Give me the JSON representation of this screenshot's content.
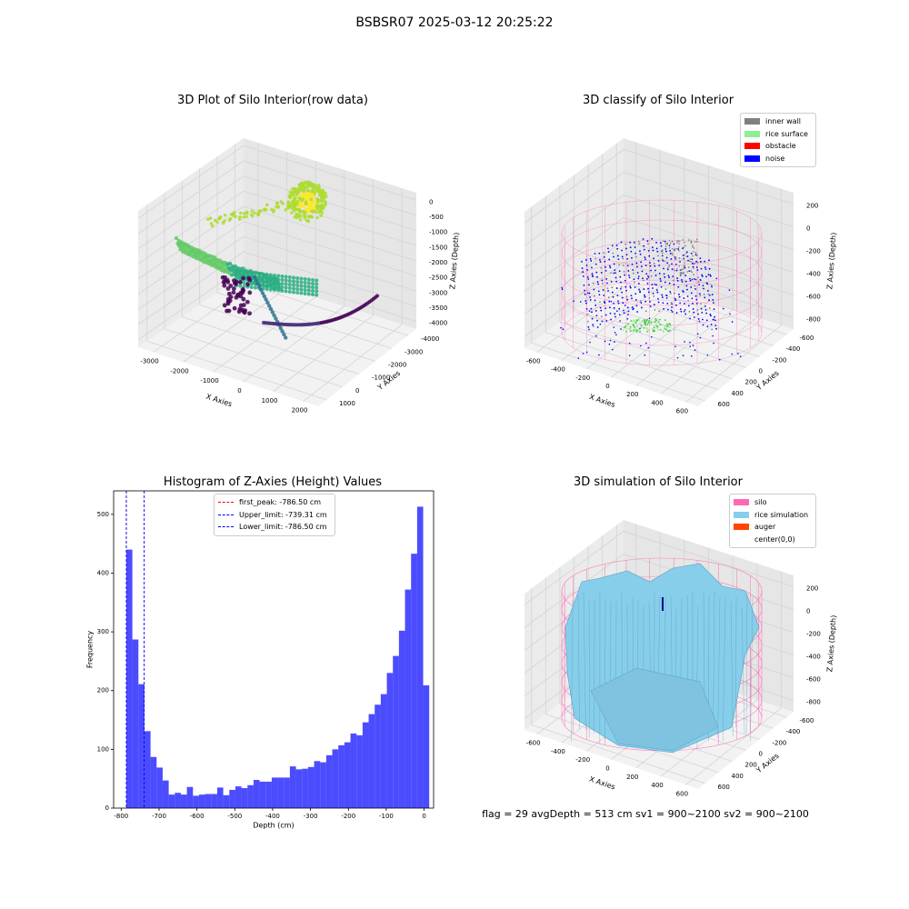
{
  "figure": {
    "title": "BSBSR07 2025-03-12 20:25:22",
    "stats": "flag = 29  avgDepth = 513 cm  sv1 = 900~2100  sv2 = 900~2100"
  },
  "chart_data": [
    {
      "type": "scatter",
      "subtype": "3d",
      "title": "3D Plot of Silo Interior(row data)",
      "xlabel": "X Axies",
      "ylabel": "Y Axies",
      "zlabel": "Z Axies (Depth)",
      "x_ticks": [
        "-3000",
        "-2000",
        "-1000",
        "0",
        "1000",
        "2000"
      ],
      "y_ticks": [
        "1000",
        "0",
        "-1000",
        "-2000",
        "-3000",
        "-4000"
      ],
      "z_ticks": [
        "0",
        "-500",
        "-1000",
        "-1500",
        "-2000",
        "-2500",
        "-3000",
        "-3500",
        "-4000"
      ],
      "colormap": "viridis",
      "grid": true
    },
    {
      "type": "scatter",
      "subtype": "3d",
      "title": "3D classify of Silo Interior",
      "xlabel": "X Axies",
      "ylabel": "Y Axies",
      "zlabel": "Z Axies (Depth)",
      "x_ticks": [
        "-600",
        "-400",
        "-200",
        "0",
        "200",
        "400",
        "600"
      ],
      "y_ticks": [
        "600",
        "400",
        "200",
        "0",
        "-200",
        "-400",
        "-600"
      ],
      "z_ticks": [
        "200",
        "0",
        "-200",
        "-400",
        "-600",
        "-800"
      ],
      "legend": {
        "position": "top-right",
        "entries": [
          {
            "label": "inner wall",
            "color": "#808080"
          },
          {
            "label": "rice surface",
            "color": "#90ee90"
          },
          {
            "label": "obstacle",
            "color": "#ff0000"
          },
          {
            "label": "noise",
            "color": "#0000ff"
          }
        ]
      },
      "grid": true
    },
    {
      "type": "bar",
      "subtype": "histogram",
      "title": "Histogram of Z-Axies (Height) Values",
      "xlabel": "Depth (cm)",
      "ylabel": "Frequency",
      "xlim": [
        -820,
        25
      ],
      "ylim": [
        0,
        540
      ],
      "x_ticks": [
        -800,
        -700,
        -600,
        -500,
        -400,
        -300,
        -200,
        -100,
        0
      ],
      "y_ticks": [
        0,
        100,
        200,
        300,
        400,
        500
      ],
      "bin_start": -786.5,
      "bin_width": 16.0,
      "values": [
        440,
        287,
        211,
        131,
        87,
        69,
        47,
        23,
        26,
        23,
        36,
        21,
        23,
        24,
        24,
        35,
        22,
        31,
        37,
        34,
        39,
        48,
        45,
        45,
        52,
        52,
        52,
        71,
        66,
        67,
        70,
        80,
        78,
        90,
        100,
        107,
        112,
        127,
        124,
        146,
        160,
        176,
        194,
        230,
        259,
        302,
        372,
        433,
        513,
        209
      ],
      "bar_color": "#0000ff",
      "bar_alpha": 0.7,
      "vlines": [
        {
          "label": "first_peak: -786.50 cm",
          "x": -786.5,
          "color": "#ff0000"
        },
        {
          "label": "Upper_limit: -739.31 cm",
          "x": -739.31,
          "color": "#0000ff"
        },
        {
          "label": "Lower_limit: -786.50 cm",
          "x": -786.5,
          "color": "#0000ff"
        }
      ],
      "legend": {
        "position": "top-center"
      }
    },
    {
      "type": "area",
      "subtype": "3d-surface",
      "title": "3D simulation of Silo Interior",
      "xlabel": "X Axies",
      "ylabel": "Y Axies",
      "zlabel": "Z Axies (Depth)",
      "x_ticks": [
        "-600",
        "-400",
        "-200",
        "0",
        "200",
        "400",
        "600"
      ],
      "y_ticks": [
        "600",
        "400",
        "200",
        "0",
        "-200",
        "-400",
        "-600"
      ],
      "z_ticks": [
        "200",
        "0",
        "-200",
        "-400",
        "-600",
        "-800"
      ],
      "legend": {
        "position": "top-right",
        "entries": [
          {
            "label": "silo",
            "color": "#ff69b4"
          },
          {
            "label": "rice simulation",
            "color": "#87ceeb"
          },
          {
            "label": "auger",
            "color": "#ff4500"
          },
          {
            "label": "center(0,0)",
            "color": "#ffffff"
          }
        ]
      },
      "grid": true
    }
  ]
}
